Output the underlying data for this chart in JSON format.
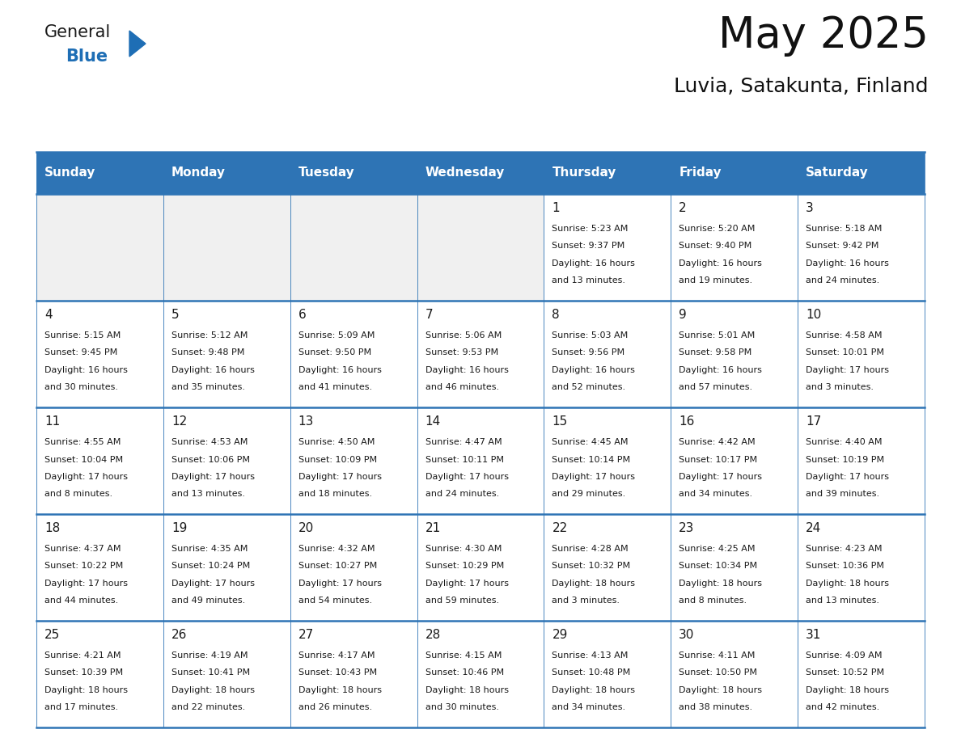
{
  "title": "May 2025",
  "subtitle": "Luvia, Satakunta, Finland",
  "header_bg": "#2E74B5",
  "header_text_color": "#FFFFFF",
  "cell_bg_empty": "#F0F0F0",
  "cell_bg_white": "#FFFFFF",
  "line_color": "#2E74B5",
  "text_color": "#1a1a1a",
  "days_of_week": [
    "Sunday",
    "Monday",
    "Tuesday",
    "Wednesday",
    "Thursday",
    "Friday",
    "Saturday"
  ],
  "weeks": [
    [
      {
        "day": "",
        "info": ""
      },
      {
        "day": "",
        "info": ""
      },
      {
        "day": "",
        "info": ""
      },
      {
        "day": "",
        "info": ""
      },
      {
        "day": "1",
        "info": "Sunrise: 5:23 AM\nSunset: 9:37 PM\nDaylight: 16 hours\nand 13 minutes."
      },
      {
        "day": "2",
        "info": "Sunrise: 5:20 AM\nSunset: 9:40 PM\nDaylight: 16 hours\nand 19 minutes."
      },
      {
        "day": "3",
        "info": "Sunrise: 5:18 AM\nSunset: 9:42 PM\nDaylight: 16 hours\nand 24 minutes."
      }
    ],
    [
      {
        "day": "4",
        "info": "Sunrise: 5:15 AM\nSunset: 9:45 PM\nDaylight: 16 hours\nand 30 minutes."
      },
      {
        "day": "5",
        "info": "Sunrise: 5:12 AM\nSunset: 9:48 PM\nDaylight: 16 hours\nand 35 minutes."
      },
      {
        "day": "6",
        "info": "Sunrise: 5:09 AM\nSunset: 9:50 PM\nDaylight: 16 hours\nand 41 minutes."
      },
      {
        "day": "7",
        "info": "Sunrise: 5:06 AM\nSunset: 9:53 PM\nDaylight: 16 hours\nand 46 minutes."
      },
      {
        "day": "8",
        "info": "Sunrise: 5:03 AM\nSunset: 9:56 PM\nDaylight: 16 hours\nand 52 minutes."
      },
      {
        "day": "9",
        "info": "Sunrise: 5:01 AM\nSunset: 9:58 PM\nDaylight: 16 hours\nand 57 minutes."
      },
      {
        "day": "10",
        "info": "Sunrise: 4:58 AM\nSunset: 10:01 PM\nDaylight: 17 hours\nand 3 minutes."
      }
    ],
    [
      {
        "day": "11",
        "info": "Sunrise: 4:55 AM\nSunset: 10:04 PM\nDaylight: 17 hours\nand 8 minutes."
      },
      {
        "day": "12",
        "info": "Sunrise: 4:53 AM\nSunset: 10:06 PM\nDaylight: 17 hours\nand 13 minutes."
      },
      {
        "day": "13",
        "info": "Sunrise: 4:50 AM\nSunset: 10:09 PM\nDaylight: 17 hours\nand 18 minutes."
      },
      {
        "day": "14",
        "info": "Sunrise: 4:47 AM\nSunset: 10:11 PM\nDaylight: 17 hours\nand 24 minutes."
      },
      {
        "day": "15",
        "info": "Sunrise: 4:45 AM\nSunset: 10:14 PM\nDaylight: 17 hours\nand 29 minutes."
      },
      {
        "day": "16",
        "info": "Sunrise: 4:42 AM\nSunset: 10:17 PM\nDaylight: 17 hours\nand 34 minutes."
      },
      {
        "day": "17",
        "info": "Sunrise: 4:40 AM\nSunset: 10:19 PM\nDaylight: 17 hours\nand 39 minutes."
      }
    ],
    [
      {
        "day": "18",
        "info": "Sunrise: 4:37 AM\nSunset: 10:22 PM\nDaylight: 17 hours\nand 44 minutes."
      },
      {
        "day": "19",
        "info": "Sunrise: 4:35 AM\nSunset: 10:24 PM\nDaylight: 17 hours\nand 49 minutes."
      },
      {
        "day": "20",
        "info": "Sunrise: 4:32 AM\nSunset: 10:27 PM\nDaylight: 17 hours\nand 54 minutes."
      },
      {
        "day": "21",
        "info": "Sunrise: 4:30 AM\nSunset: 10:29 PM\nDaylight: 17 hours\nand 59 minutes."
      },
      {
        "day": "22",
        "info": "Sunrise: 4:28 AM\nSunset: 10:32 PM\nDaylight: 18 hours\nand 3 minutes."
      },
      {
        "day": "23",
        "info": "Sunrise: 4:25 AM\nSunset: 10:34 PM\nDaylight: 18 hours\nand 8 minutes."
      },
      {
        "day": "24",
        "info": "Sunrise: 4:23 AM\nSunset: 10:36 PM\nDaylight: 18 hours\nand 13 minutes."
      }
    ],
    [
      {
        "day": "25",
        "info": "Sunrise: 4:21 AM\nSunset: 10:39 PM\nDaylight: 18 hours\nand 17 minutes."
      },
      {
        "day": "26",
        "info": "Sunrise: 4:19 AM\nSunset: 10:41 PM\nDaylight: 18 hours\nand 22 minutes."
      },
      {
        "day": "27",
        "info": "Sunrise: 4:17 AM\nSunset: 10:43 PM\nDaylight: 18 hours\nand 26 minutes."
      },
      {
        "day": "28",
        "info": "Sunrise: 4:15 AM\nSunset: 10:46 PM\nDaylight: 18 hours\nand 30 minutes."
      },
      {
        "day": "29",
        "info": "Sunrise: 4:13 AM\nSunset: 10:48 PM\nDaylight: 18 hours\nand 34 minutes."
      },
      {
        "day": "30",
        "info": "Sunrise: 4:11 AM\nSunset: 10:50 PM\nDaylight: 18 hours\nand 38 minutes."
      },
      {
        "day": "31",
        "info": "Sunrise: 4:09 AM\nSunset: 10:52 PM\nDaylight: 18 hours\nand 42 minutes."
      }
    ]
  ],
  "logo_color_general": "#1a1a1a",
  "logo_color_blue": "#1e6eb5",
  "logo_triangle_color": "#1e6eb5",
  "figwidth": 11.88,
  "figheight": 9.18,
  "dpi": 100
}
